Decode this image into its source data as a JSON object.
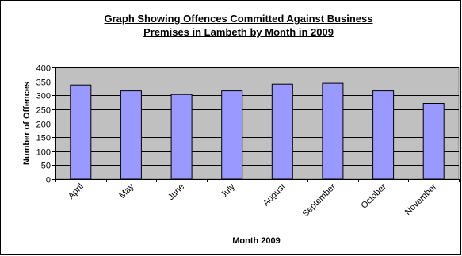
{
  "chart_data": {
    "type": "bar",
    "title": [
      "Graph Showing Offences Committed Against Business",
      "Premises in Lambeth by Month in 2009"
    ],
    "xlabel": "Month 2009",
    "ylabel": "Number of Offences",
    "categories": [
      "April",
      "May",
      "June",
      "July",
      "August",
      "September",
      "October",
      "November"
    ],
    "series": [
      {
        "values": [
          337,
          316,
          303,
          316,
          340,
          343,
          316,
          271
        ]
      }
    ],
    "ylim": [
      0,
      400
    ],
    "yticks": [
      0,
      50,
      100,
      150,
      200,
      250,
      300,
      350,
      400
    ],
    "grid": true,
    "legend": "none",
    "colors": {
      "bar_fill": "#9999ff",
      "bar_stroke": "#000000",
      "plot_background": "#c0c0c0",
      "gridline": "#000000"
    }
  }
}
